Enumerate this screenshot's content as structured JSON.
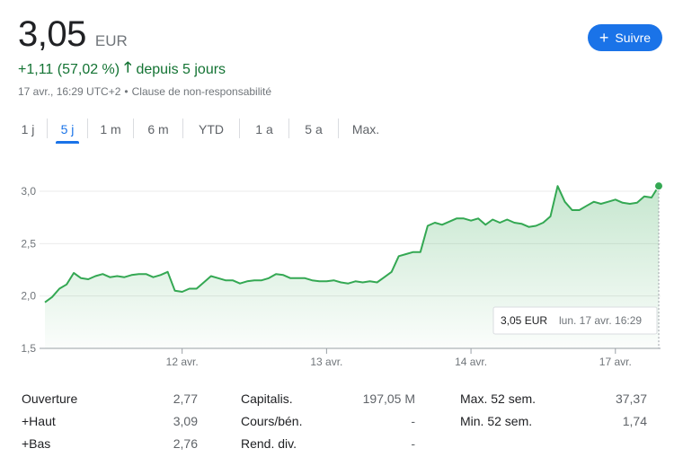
{
  "header": {
    "price": "3,05",
    "currency": "EUR",
    "follow_label": "Suivre",
    "change": "+1,11 (57,02 %)",
    "change_period": "depuis 5 jours",
    "timestamp": "17 avr., 16:29 UTC+2",
    "disclaimer": "Clause de non-responsabilité"
  },
  "tabs": [
    "1 j",
    "5 j",
    "1 m",
    "6 m",
    "YTD",
    "1 a",
    "5 a",
    "Max."
  ],
  "active_tab": "5 j",
  "colors": {
    "line": "#34a853",
    "accent": "#1a73e8",
    "positive": "#137333"
  },
  "chart_data": {
    "type": "area",
    "y_ticks": [
      "3,0",
      "2,5",
      "2,0",
      "1,5"
    ],
    "y_tick_values": [
      3.0,
      2.5,
      2.0,
      1.5
    ],
    "ylim": [
      1.5,
      3.05
    ],
    "x_tick_labels": [
      "12 avr.",
      "13 avr.",
      "14 avr.",
      "17 avr."
    ],
    "x_tick_positions": [
      19,
      39,
      59,
      79
    ],
    "grid": true,
    "series": [
      {
        "values": [
          1.94,
          1.99,
          2.07,
          2.11,
          2.22,
          2.17,
          2.16,
          2.19,
          2.21,
          2.18,
          2.19,
          2.18,
          2.2,
          2.21,
          2.21,
          2.18,
          2.2,
          2.23,
          2.05,
          2.04,
          2.07,
          2.07,
          2.13,
          2.19,
          2.17,
          2.15,
          2.15,
          2.12,
          2.14,
          2.15,
          2.15,
          2.17,
          2.21,
          2.2,
          2.17,
          2.17,
          2.17,
          2.15,
          2.14,
          2.14,
          2.15,
          2.13,
          2.12,
          2.14,
          2.13,
          2.14,
          2.13,
          2.18,
          2.23,
          2.38,
          2.4,
          2.42,
          2.42,
          2.67,
          2.7,
          2.68,
          2.71,
          2.74,
          2.74,
          2.72,
          2.74,
          2.68,
          2.73,
          2.7,
          2.73,
          2.7,
          2.69,
          2.66,
          2.67,
          2.7,
          2.76,
          3.05,
          2.9,
          2.82,
          2.82,
          2.86,
          2.9,
          2.88,
          2.9,
          2.92,
          2.89,
          2.88,
          2.89,
          2.95,
          2.94,
          3.05
        ]
      }
    ],
    "tooltip": {
      "value": "3,05 EUR",
      "date": "lun. 17 avr. 16:29"
    }
  },
  "stats": {
    "col1": [
      {
        "label": "Ouverture",
        "value": "2,77"
      },
      {
        "label": "+Haut",
        "value": "3,09"
      },
      {
        "label": "+Bas",
        "value": "2,76"
      }
    ],
    "col2": [
      {
        "label": "Capitalis.",
        "value": "197,05 M"
      },
      {
        "label": "Cours/bén.",
        "value": "-"
      },
      {
        "label": "Rend. div.",
        "value": "-"
      }
    ],
    "col3": [
      {
        "label": "Max. 52 sem.",
        "value": "37,37"
      },
      {
        "label": "Min. 52 sem.",
        "value": "1,74"
      }
    ]
  }
}
